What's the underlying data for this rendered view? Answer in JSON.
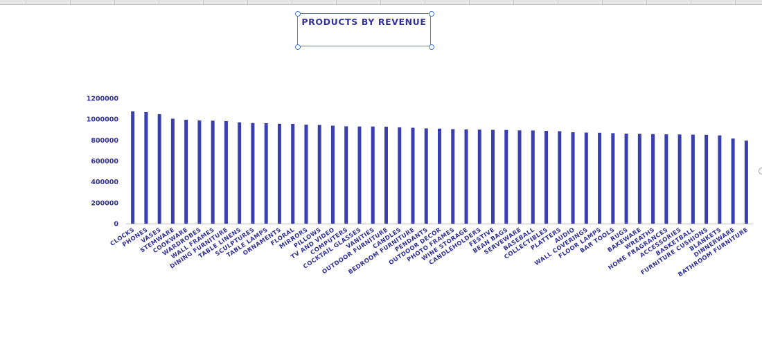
{
  "chart_data": {
    "type": "bar",
    "title": "PRODUCTS BY REVENUE",
    "ylim": [
      0,
      1200000
    ],
    "yticks": [
      0,
      200000,
      400000,
      600000,
      800000,
      1000000,
      1200000
    ],
    "grid": false,
    "legend": "none",
    "categories": [
      "CLOCKS",
      "PHONES",
      "VASES",
      "STEMWARE",
      "COOKWARE",
      "WARDROBES",
      "WALL FRAMES",
      "DINING FURNITURE",
      "TABLE LINENS",
      "SCULPTURES",
      "TABLE LAMPS",
      "ORNAMENTS",
      "FLORAL",
      "MIRRORS",
      "PILLOWS",
      "TV AND VIDEO",
      "COMPUTERS",
      "COCKTAIL GLASSES",
      "VANITIES",
      "OUTDOOR FURNITURE",
      "CANDLES",
      "BEDROOM FURNITURE",
      "PENDANTS",
      "OUTDOOR DECOR",
      "PHOTO FRAMES",
      "WINE STORAGE",
      "CANDLEHOLDERS",
      "FESTIVE",
      "BEAN BAGS",
      "SERVEWARE",
      "BASEBALL",
      "COLLECTIBLES",
      "PLATTERS",
      "AUDIO",
      "WALL COVERINGS",
      "FLOOR LAMPS",
      "BAR TOOLS",
      "RUGS",
      "BAKEWARE",
      "WREATHS",
      "HOME FRAGRANCES",
      "ACCESSORIES",
      "BASKETBALL",
      "FURNITURE CUSHIONS",
      "BLANKETS",
      "DINNERWARE",
      "BATHROOM FURNITURE"
    ],
    "values": [
      1075000,
      1068000,
      1048000,
      1005000,
      995000,
      988000,
      986000,
      982000,
      970000,
      963000,
      962000,
      956000,
      955000,
      948000,
      945000,
      938000,
      932000,
      930000,
      930000,
      928000,
      922000,
      918000,
      912000,
      910000,
      905000,
      902000,
      900000,
      898000,
      897000,
      893000,
      892000,
      888000,
      885000,
      875000,
      872000,
      870000,
      866000,
      862000,
      860000,
      858000,
      855000,
      854000,
      852000,
      850000,
      845000,
      815000,
      795000
    ],
    "colors": {
      "bar": "#3a3fb0",
      "text": "#33339a",
      "axis": "#bfbfbf"
    }
  }
}
